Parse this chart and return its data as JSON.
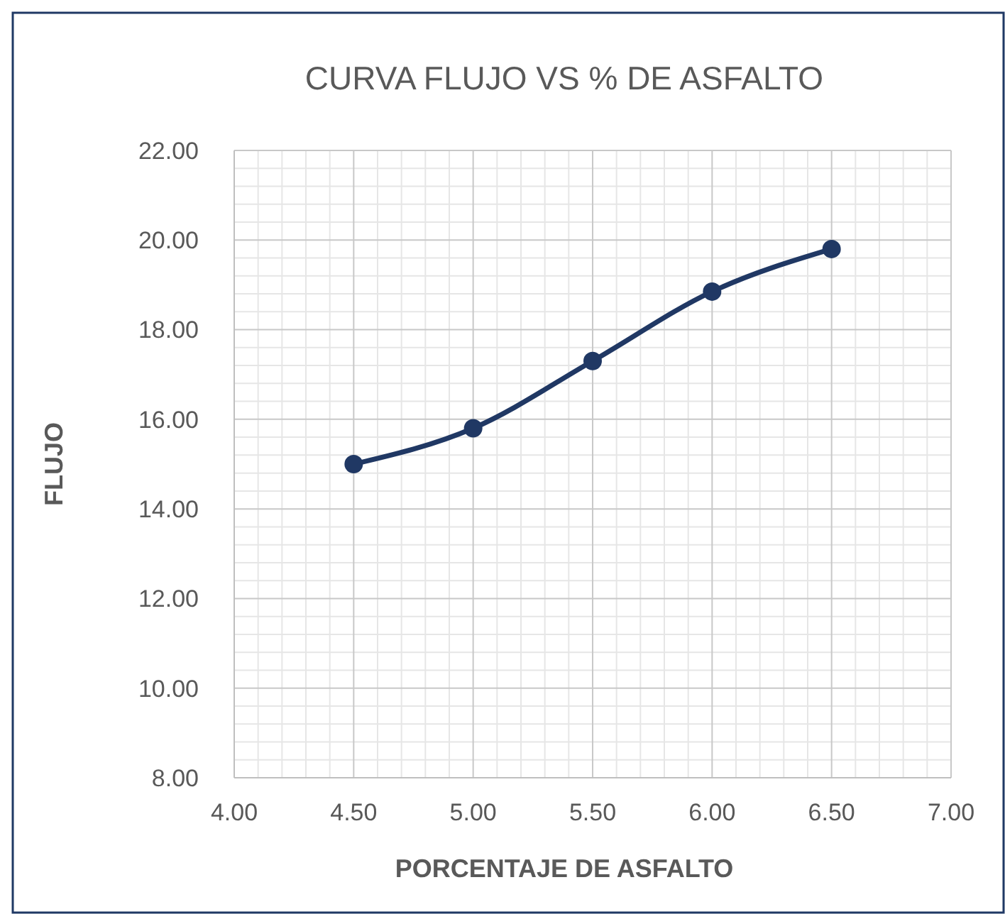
{
  "chart_data": {
    "type": "line",
    "title": "CURVA FLUJO VS % DE ASFALTO",
    "xlabel": "PORCENTAJE DE ASFALTO",
    "ylabel": "FLUJO",
    "x": [
      4.5,
      5.0,
      5.5,
      6.0,
      6.5
    ],
    "series": [
      {
        "color": "#203864",
        "values": [
          15.0,
          15.8,
          17.3,
          18.85,
          19.8
        ]
      }
    ],
    "xlim": [
      4,
      7
    ],
    "xticks": [
      {
        "value": 4,
        "label": "4.00"
      },
      {
        "value": 4.5,
        "label": "4.50"
      },
      {
        "value": 5,
        "label": "5.00"
      },
      {
        "value": 5.5,
        "label": "5.50"
      },
      {
        "value": 6,
        "label": "6.00"
      },
      {
        "value": 6.5,
        "label": "6.50"
      },
      {
        "value": 7,
        "label": "7.00"
      }
    ],
    "ylim": [
      8,
      22
    ],
    "yticks": [
      {
        "value": 8,
        "label": "8.00"
      },
      {
        "value": 10,
        "label": "10.00"
      },
      {
        "value": 12,
        "label": "12.00"
      },
      {
        "value": 14,
        "label": "14.00"
      },
      {
        "value": 16,
        "label": "16.00"
      },
      {
        "value": 18,
        "label": "18.00"
      },
      {
        "value": 20,
        "label": "20.00"
      },
      {
        "value": 22,
        "label": "22.00"
      }
    ],
    "grid": true,
    "marker": "circle",
    "line_style": "solid"
  }
}
